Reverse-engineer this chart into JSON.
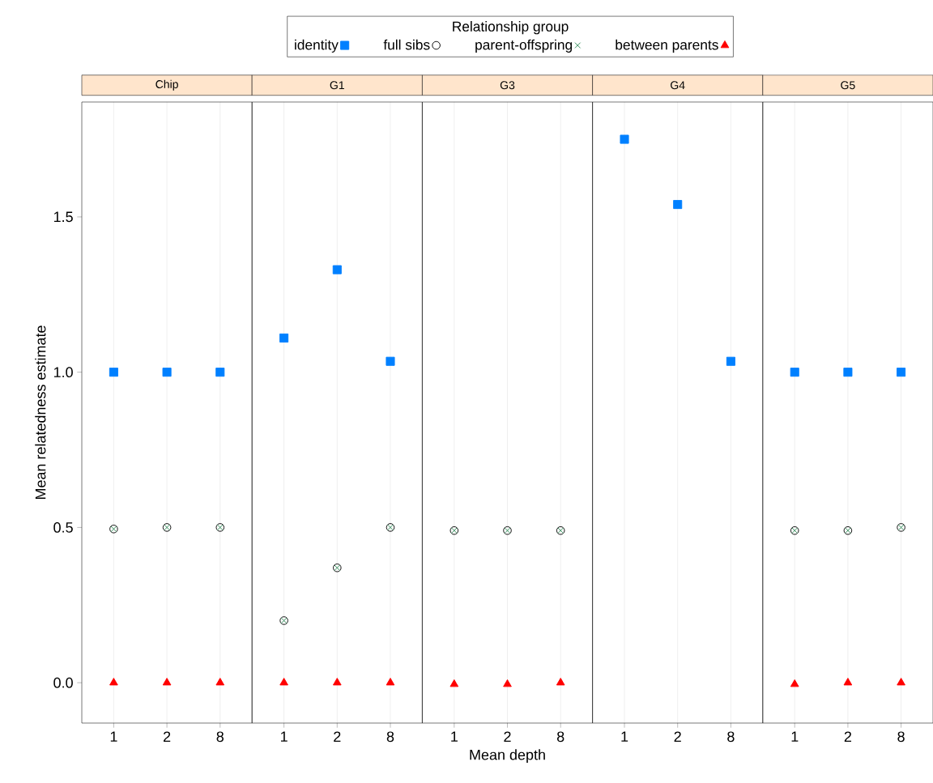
{
  "chart_data": [
    {
      "type": "scatter",
      "title": "Chip",
      "ylabel": "Mean relatedness estimate",
      "legend_title": "Relationship group",
      "legend": "top",
      "grid": "x",
      "categories": [
        "1",
        "2",
        "8"
      ],
      "ylim": [
        -0.13,
        1.87
      ],
      "yticks": [
        {
          "value": 0,
          "label": "0.0"
        },
        {
          "value": 0.5,
          "label": "0.5"
        },
        {
          "value": 1,
          "label": "1.0"
        },
        {
          "value": 1.5,
          "label": "1.5"
        }
      ],
      "series": [
        {
          "name": "identity",
          "color": "#0080ff",
          "marker": "square",
          "values": [
            1.0,
            1.0,
            1.0
          ]
        },
        {
          "name": "full sibs",
          "color": "#000000",
          "marker": "circle",
          "values": [
            0.495,
            0.5,
            0.5
          ]
        },
        {
          "name": "parent-offspring",
          "color": "#2e8b57",
          "marker": "cross",
          "values": [
            0.495,
            0.5,
            0.5
          ]
        },
        {
          "name": "between parents",
          "color": "#ff0000",
          "marker": "triangle",
          "values": [
            0.0,
            0.0,
            0.0
          ]
        }
      ]
    },
    {
      "type": "scatter",
      "title": "G1",
      "grid": "x",
      "tick_labels": "x",
      "categories": [
        "1",
        "2",
        "8"
      ],
      "ylim": [
        -0.13,
        1.87
      ],
      "series": [
        {
          "color": "#0080ff",
          "marker": "square",
          "values": [
            1.11,
            1.33,
            1.035
          ]
        },
        {
          "color": "#000000",
          "marker": "circle",
          "values": [
            0.2,
            0.37,
            0.5
          ]
        },
        {
          "color": "#2e8b57",
          "marker": "cross",
          "values": [
            0.2,
            0.37,
            0.5
          ]
        },
        {
          "color": "#ff0000",
          "marker": "triangle",
          "values": [
            0.0,
            0.0,
            0.0
          ]
        }
      ]
    },
    {
      "type": "scatter",
      "title": "G3",
      "xlabel": "Mean depth",
      "grid": "x",
      "tick_labels": "x",
      "categories": [
        "1",
        "2",
        "8"
      ],
      "ylim": [
        -0.13,
        1.87
      ],
      "series": [
        {
          "color": "#0080ff",
          "marker": "square",
          "values": [
            null,
            null,
            null
          ]
        },
        {
          "color": "#000000",
          "marker": "circle",
          "values": [
            0.49,
            0.49,
            0.49
          ]
        },
        {
          "color": "#2e8b57",
          "marker": "cross",
          "values": [
            0.49,
            0.49,
            0.49
          ]
        },
        {
          "color": "#ff0000",
          "marker": "triangle",
          "values": [
            -0.005,
            -0.005,
            0.0
          ]
        }
      ]
    },
    {
      "type": "scatter",
      "title": "G4",
      "grid": "x",
      "tick_labels": "x",
      "categories": [
        "1",
        "2",
        "8"
      ],
      "ylim": [
        -0.13,
        1.87
      ],
      "series": [
        {
          "color": "#0080ff",
          "marker": "square",
          "values": [
            1.75,
            1.54,
            1.035
          ]
        },
        {
          "color": "#000000",
          "marker": "circle",
          "values": [
            null,
            null,
            null
          ]
        },
        {
          "color": "#2e8b57",
          "marker": "cross",
          "values": [
            null,
            null,
            null
          ]
        },
        {
          "color": "#ff0000",
          "marker": "triangle",
          "values": [
            null,
            null,
            null
          ]
        }
      ]
    },
    {
      "type": "scatter",
      "title": "G5",
      "grid": "x",
      "tick_labels": "x",
      "categories": [
        "1",
        "2",
        "8"
      ],
      "ylim": [
        -0.13,
        1.87
      ],
      "series": [
        {
          "color": "#0080ff",
          "marker": "square",
          "values": [
            1.0,
            1.0,
            1.0
          ]
        },
        {
          "color": "#000000",
          "marker": "circle",
          "values": [
            0.49,
            0.49,
            0.5
          ]
        },
        {
          "color": "#2e8b57",
          "marker": "cross",
          "values": [
            0.49,
            0.49,
            0.5
          ]
        },
        {
          "color": "#ff0000",
          "marker": "triangle",
          "values": [
            -0.005,
            0.0,
            0.0
          ]
        }
      ]
    }
  ]
}
